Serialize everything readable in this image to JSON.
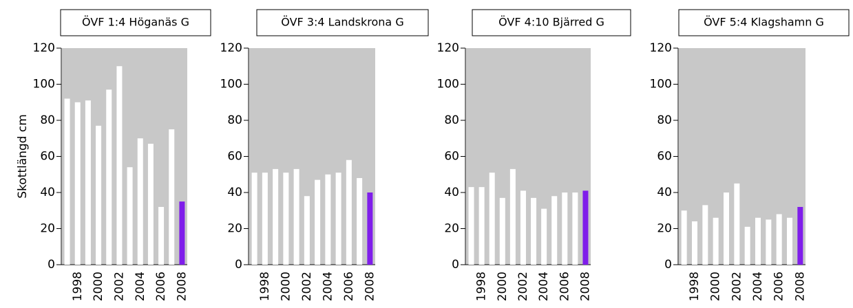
{
  "chart_data": [
    {
      "type": "bar",
      "title": "ÖVF 1:4 Höganäs G",
      "ylabel": "Skottlängd cm",
      "categories": [
        null,
        "1998",
        null,
        "2000",
        null,
        "2002",
        null,
        "2004",
        null,
        "2006",
        null,
        "2008"
      ],
      "values": [
        92,
        90,
        91,
        77,
        97,
        110,
        54,
        70,
        67,
        32,
        75,
        35
      ],
      "colors": [
        "#ffffff",
        "#ffffff",
        "#ffffff",
        "#ffffff",
        "#ffffff",
        "#ffffff",
        "#ffffff",
        "#ffffff",
        "#ffffff",
        "#ffffff",
        "#ffffff",
        "#7f1dea"
      ],
      "background": "#c8c8c8",
      "ylim": [
        0,
        120
      ],
      "yticks": [
        0,
        20,
        40,
        60,
        80,
        100,
        120
      ]
    },
    {
      "type": "bar",
      "title": "ÖVF 3:4 Landskrona G",
      "categories": [
        null,
        "1998",
        null,
        "2000",
        null,
        "2002",
        null,
        "2004",
        null,
        "2006",
        null,
        "2008"
      ],
      "values": [
        51,
        51,
        53,
        51,
        53,
        38,
        47,
        50,
        51,
        58,
        48,
        40
      ],
      "colors": [
        "#ffffff",
        "#ffffff",
        "#ffffff",
        "#ffffff",
        "#ffffff",
        "#ffffff",
        "#ffffff",
        "#ffffff",
        "#ffffff",
        "#ffffff",
        "#ffffff",
        "#7f1dea"
      ],
      "background": "#c8c8c8",
      "ylim": [
        0,
        120
      ],
      "yticks": [
        0,
        20,
        40,
        60,
        80,
        100,
        120
      ]
    },
    {
      "type": "bar",
      "title": "ÖVF 4:10 Bjärred G",
      "categories": [
        null,
        "1998",
        null,
        "2000",
        null,
        "2002",
        null,
        "2004",
        null,
        "2006",
        null,
        "2008"
      ],
      "values": [
        43,
        43,
        51,
        37,
        53,
        41,
        37,
        31,
        38,
        40,
        40,
        41
      ],
      "colors": [
        "#ffffff",
        "#ffffff",
        "#ffffff",
        "#ffffff",
        "#ffffff",
        "#ffffff",
        "#ffffff",
        "#ffffff",
        "#ffffff",
        "#ffffff",
        "#ffffff",
        "#7f1dea"
      ],
      "background": "#c8c8c8",
      "ylim": [
        0,
        120
      ],
      "yticks": [
        0,
        20,
        40,
        60,
        80,
        100,
        120
      ]
    },
    {
      "type": "bar",
      "title": "ÖVF 5:4 Klagshamn G",
      "categories": [
        null,
        "1998",
        null,
        "2000",
        null,
        "2002",
        null,
        "2004",
        null,
        "2006",
        null,
        "2008"
      ],
      "values": [
        30,
        24,
        33,
        26,
        40,
        45,
        21,
        26,
        25,
        28,
        26,
        32
      ],
      "colors": [
        "#ffffff",
        "#ffffff",
        "#ffffff",
        "#ffffff",
        "#ffffff",
        "#ffffff",
        "#ffffff",
        "#ffffff",
        "#ffffff",
        "#ffffff",
        "#ffffff",
        "#7f1dea"
      ],
      "background": "#c8c8c8",
      "ylim": [
        0,
        120
      ],
      "yticks": [
        0,
        20,
        40,
        60,
        80,
        100,
        120
      ]
    }
  ]
}
